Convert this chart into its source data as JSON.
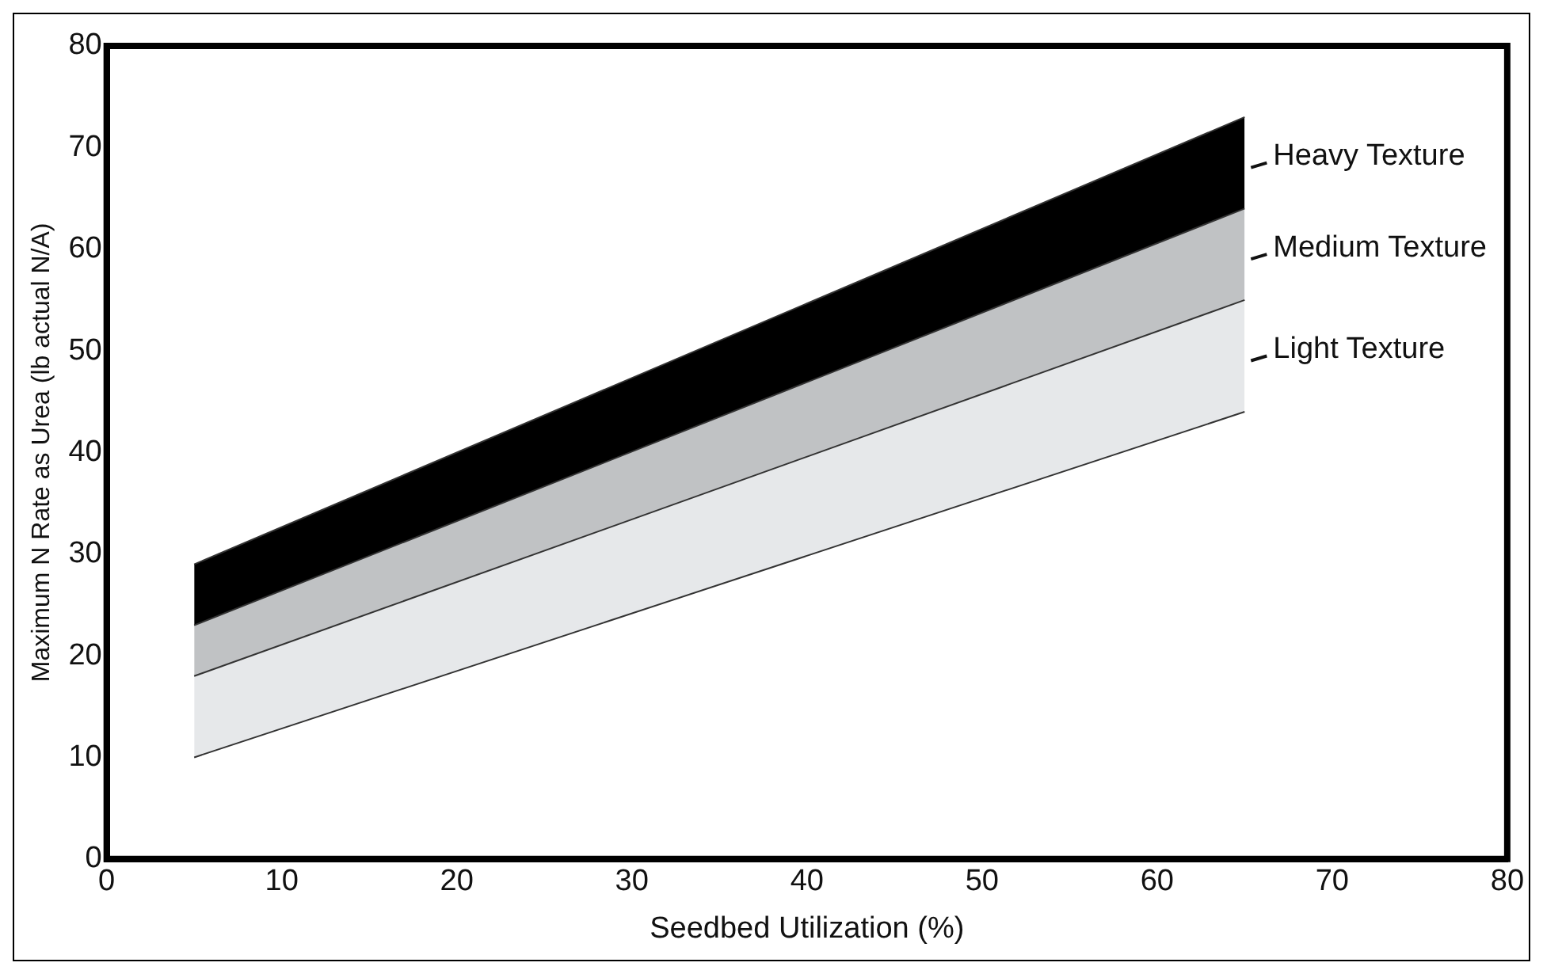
{
  "chart_data": {
    "type": "area",
    "xlabel": "Seedbed Utilization (%)",
    "ylabel": "Maximum N Rate as Urea (lb actual N/A)",
    "x": [
      5,
      65
    ],
    "series": [
      {
        "type": "line",
        "color": "#333333",
        "values": [
          10,
          44
        ]
      },
      {
        "name": "Light Texture",
        "color": "#e6e8ea",
        "values": [
          18,
          55
        ]
      },
      {
        "name": "Medium Texture",
        "color": "#c0c2c4",
        "values": [
          23,
          64
        ]
      },
      {
        "name": "Heavy Texture",
        "color": "#000000",
        "values": [
          29,
          73
        ]
      }
    ],
    "xlim": [
      0,
      80
    ],
    "xticks": [
      0,
      10,
      20,
      30,
      40,
      50,
      60,
      70,
      80
    ],
    "ylim": [
      0,
      80
    ],
    "yticks": [
      0,
      10,
      20,
      30,
      40,
      50,
      60,
      70,
      80
    ],
    "grid": false,
    "legend": false
  }
}
